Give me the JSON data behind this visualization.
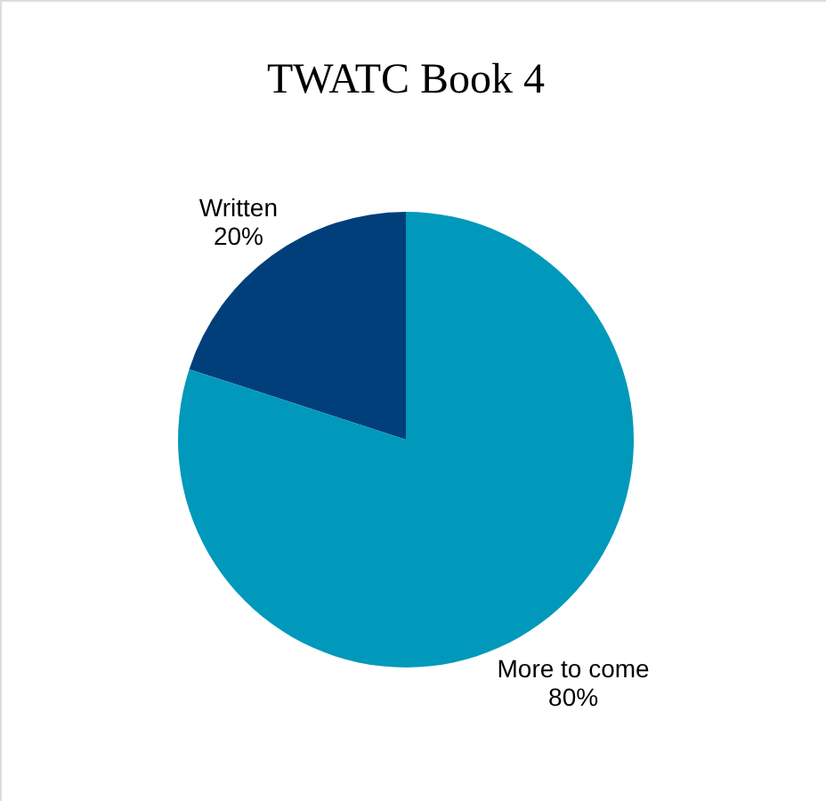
{
  "chart_data": {
    "type": "pie",
    "title": "TWATC Book 4",
    "categories": [
      "Written",
      "More to come"
    ],
    "values": [
      20,
      80
    ],
    "value_labels": [
      "20%",
      "80%"
    ],
    "colors": [
      "#003f7a",
      "#0099bb"
    ]
  }
}
